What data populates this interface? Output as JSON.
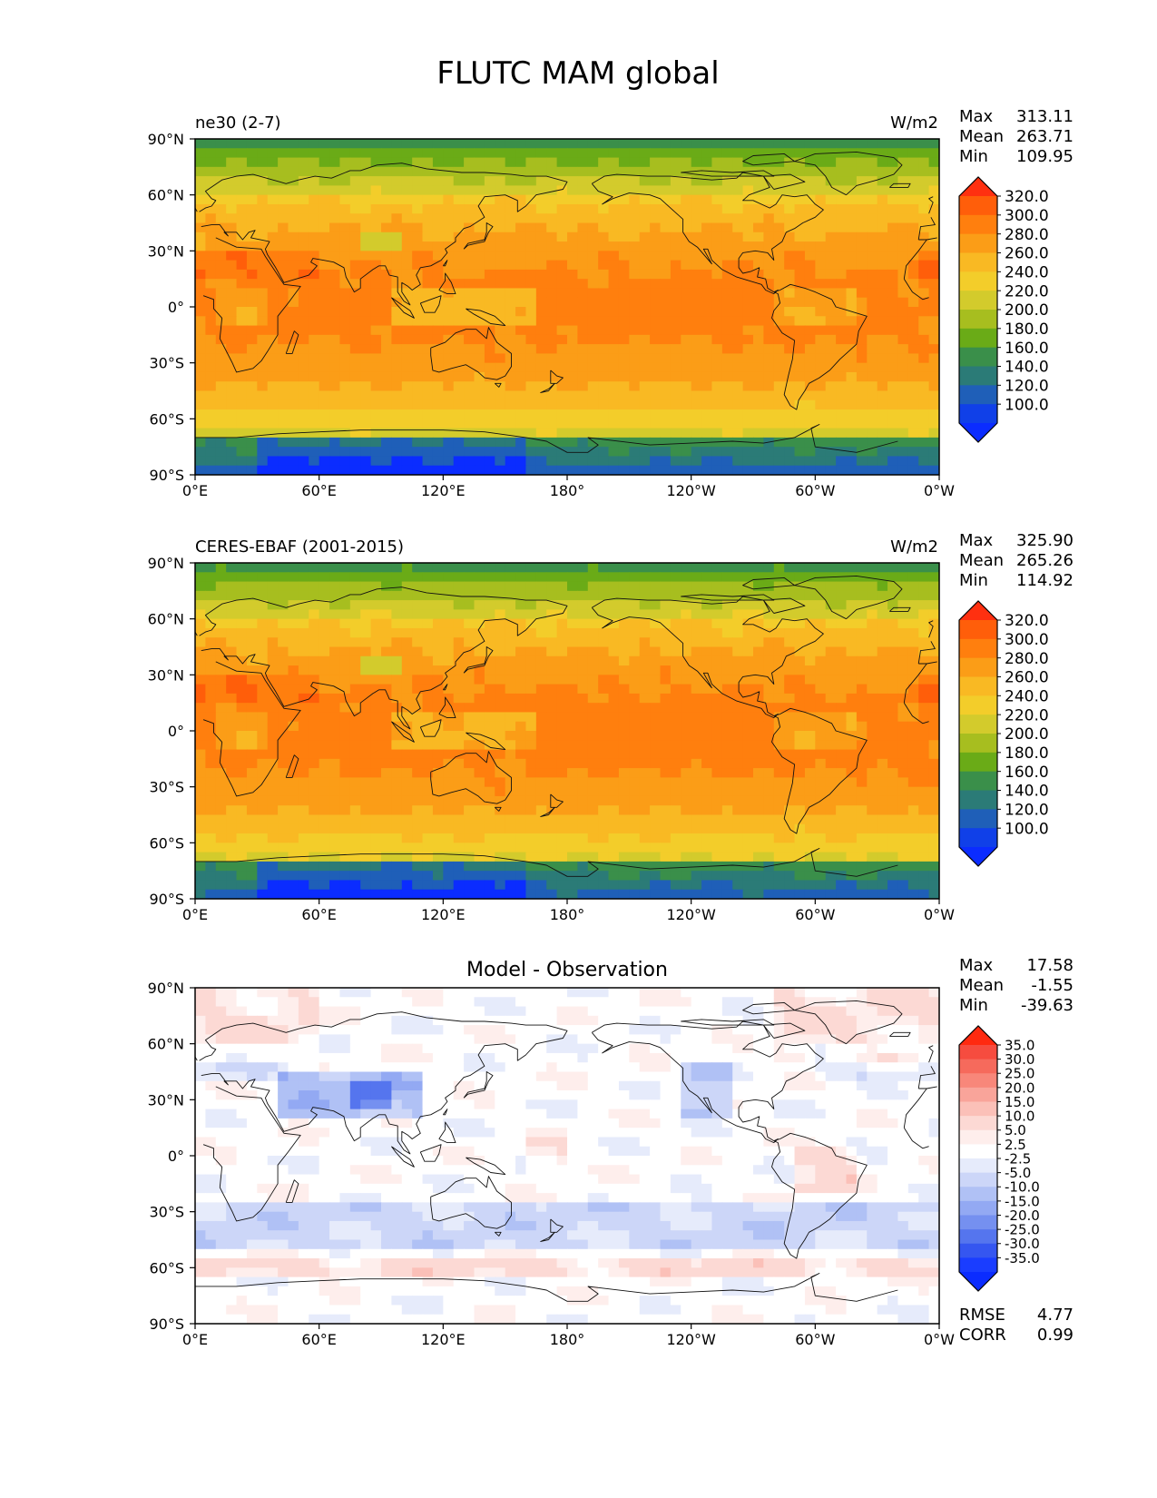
{
  "title": "FLUTC MAM global",
  "x_ticks": [
    "0°E",
    "60°E",
    "120°E",
    "180°",
    "120°W",
    "60°W",
    "0°W"
  ],
  "y_ticks": [
    "90°N",
    "60°N",
    "30°N",
    "0°",
    "30°S",
    "60°S",
    "90°S"
  ],
  "stat_labels": {
    "max": "Max",
    "mean": "Mean",
    "min": "Min",
    "rmse": "RMSE",
    "corr": "CORR"
  },
  "panels": [
    {
      "left_title": "ne30 (2-7)",
      "center_title": "",
      "units": "W/m2",
      "stats": {
        "max": "313.11",
        "mean": "263.71",
        "min": "109.95"
      },
      "colorbar_type": "absolute"
    },
    {
      "left_title": "CERES-EBAF (2001-2015)",
      "center_title": "",
      "units": "W/m2",
      "stats": {
        "max": "325.90",
        "mean": "265.26",
        "min": "114.92"
      },
      "colorbar_type": "absolute"
    },
    {
      "left_title": "",
      "center_title": "Model - Observation",
      "units": "",
      "stats": {
        "max": "17.58",
        "mean": "-1.55",
        "min": "-39.63"
      },
      "colorbar_type": "diff",
      "extra_stats": {
        "rmse": "4.77",
        "corr": "0.99"
      }
    }
  ],
  "colorbars": {
    "absolute": {
      "levels": [
        "320.0",
        "300.0",
        "280.0",
        "260.0",
        "240.0",
        "220.0",
        "200.0",
        "180.0",
        "160.0",
        "140.0",
        "120.0",
        "100.0"
      ],
      "colors": [
        "#ff3010",
        "#ff5e0a",
        "#ff7f0e",
        "#fb9d17",
        "#f9b923",
        "#f3cd2a",
        "#d3cb2c",
        "#a7be1f",
        "#6aab17",
        "#3a8f4a",
        "#2b7b77",
        "#1f5fb8",
        "#1040e8",
        "#0b2cff"
      ]
    },
    "diff": {
      "levels": [
        "35.0",
        "30.0",
        "25.0",
        "20.0",
        "15.0",
        "10.0",
        "5.0",
        "2.5",
        "-2.5",
        "-5.0",
        "-10.0",
        "-15.0",
        "-20.0",
        "-25.0",
        "-30.0",
        "-35.0"
      ],
      "colors": [
        "#ff2a10",
        "#f64c3f",
        "#f66a5c",
        "#f8877a",
        "#f9a49a",
        "#fbc0b8",
        "#fcd9d4",
        "#feeeec",
        "#ffffff",
        "#e6ebfb",
        "#ccd6f8",
        "#b0c1f5",
        "#93a9f3",
        "#7590f0",
        "#5575ee",
        "#3556f0",
        "#1a3dff",
        "#0b2cff"
      ]
    }
  }
}
